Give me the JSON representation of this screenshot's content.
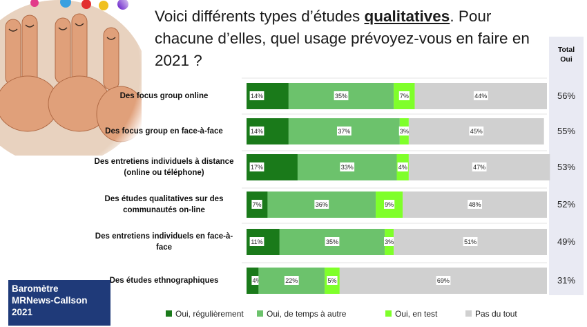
{
  "title": {
    "before": "Voici différents types d’études ",
    "bold": "qualitatives",
    "after": ". Pour chacune d’elles, quel usage prévoyez-vous en faire en 2021 ?"
  },
  "total_header": "Total\nOui",
  "barometre": {
    "line1": "Baromètre",
    "line2": "MRNews-Callson",
    "line3": "2021"
  },
  "colors": {
    "oui_regulierement": "#1a7a1a",
    "oui_temps": "#6cc26c",
    "oui_test": "#7fff2a",
    "pas_du_tout": "#d0d0d0"
  },
  "chart_data": {
    "type": "bar",
    "orientation": "horizontal",
    "stacked": true,
    "categories": [
      "Des focus group online",
      "Des focus group en face-à-face",
      "Des entretiens individuels à distance (online ou téléphone)",
      "Des études qualitatives sur des communautés on-line",
      "Des entretiens individuels en face-à-face",
      "Des études ethnographiques"
    ],
    "series": [
      {
        "name": "Oui, régulièrement",
        "values": [
          14,
          14,
          17,
          7,
          11,
          4
        ]
      },
      {
        "name": "Oui, de temps à autre",
        "values": [
          35,
          37,
          33,
          36,
          35,
          22
        ]
      },
      {
        "name": "Oui, en test",
        "values": [
          7,
          3,
          4,
          9,
          3,
          5
        ]
      },
      {
        "name": "Pas du tout",
        "values": [
          44,
          45,
          47,
          48,
          51,
          69
        ]
      }
    ],
    "total_oui": [
      "56%",
      "55%",
      "53%",
      "52%",
      "49%",
      "31%"
    ],
    "value_suffix": "%",
    "legend_position": "bottom",
    "xlim": [
      0,
      100
    ]
  }
}
